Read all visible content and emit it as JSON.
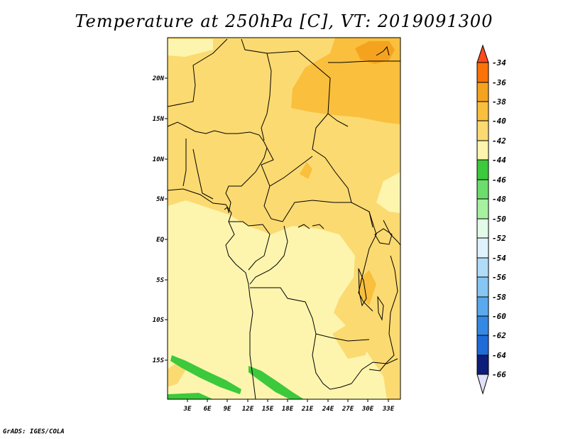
{
  "title": "Temperature at 250hPa [C], VT: 2019091300",
  "footer": "GrADS: IGES/COLA",
  "map": {
    "lat_labels": [
      "20N",
      "15N",
      "10N",
      "5N",
      "EQ",
      "5S",
      "10S",
      "15S"
    ],
    "lon_labels": [
      "3E",
      "6E",
      "9E",
      "12E",
      "15E",
      "18E",
      "21E",
      "24E",
      "27E",
      "30E",
      "33E"
    ]
  },
  "colorbar": {
    "labels": [
      "-34",
      "-36",
      "-38",
      "-40",
      "-42",
      "-44",
      "-46",
      "-48",
      "-50",
      "-52",
      "-54",
      "-56",
      "-58",
      "-60",
      "-62",
      "-64",
      "-66"
    ],
    "colors": {
      "above_-34": "#ff4a1a",
      "-36_-34": "#fa7208",
      "-38_-36": "#f5a31e",
      "-40_-38": "#f9bf3d",
      "-42_-40": "#fbda71",
      "-44_-42": "#fdf5ae",
      "-46_-44": "#3cc93c",
      "-48_-46": "#6cdd6c",
      "-50_-48": "#a7f0a0",
      "-52_-50": "#e2fbe8",
      "-54_-52": "#dff2fc",
      "-56_-54": "#b0dcf8",
      "-58_-56": "#86c6f3",
      "-60_-58": "#5aa9ec",
      "-62_-60": "#3589e5",
      "-64_-62": "#1f6bd8",
      "-66_-64": "#1049b8",
      "below_-66": "#e0e0ff",
      "-68_-66": "#0c1d7a"
    }
  }
}
